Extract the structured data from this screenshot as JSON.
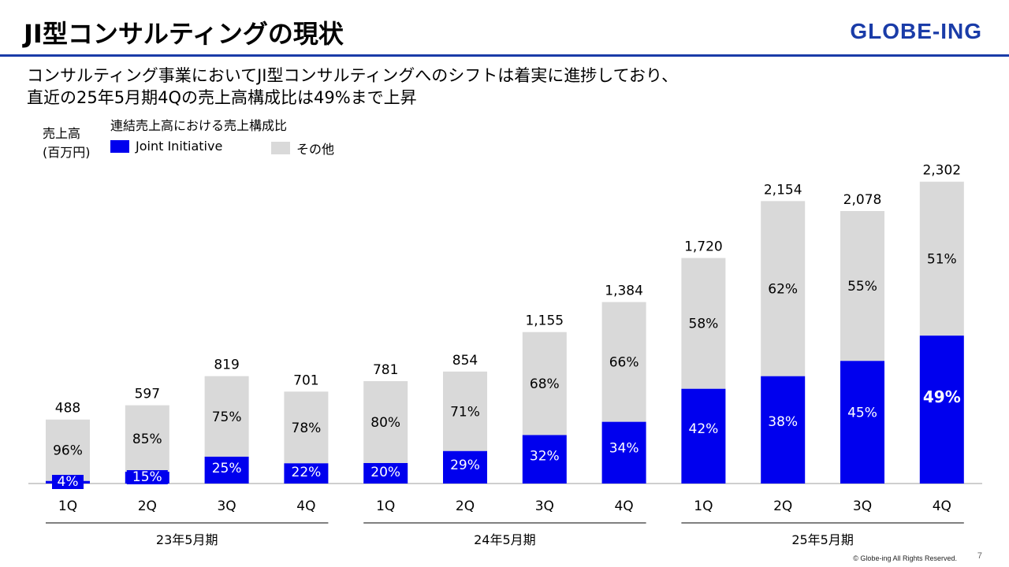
{
  "header": {
    "title": "JI型コンサルティングの現状",
    "logo": "GLOBE-ING",
    "subtitle_line1": "コンサルティング事業においてJI型コンサルティングへのシフトは着実に進捗しており、",
    "subtitle_line2": "直近の25年5月期4Qの売上高構成比は49%まで上昇"
  },
  "chart_info": {
    "y_unit_line1": "売上高",
    "y_unit_line2": "(百万円)",
    "caption": "連結売上高における売上構成比"
  },
  "legend": {
    "ji_label": "Joint Initiative",
    "other_label": "その他"
  },
  "footer": {
    "copyright": "© Globe-ing All Rights Reserved.",
    "page_number": "7"
  },
  "colors": {
    "ji": "#0000ee",
    "other": "#d9d9d9",
    "brand": "#1a3ca8"
  },
  "chart_data": {
    "type": "bar",
    "stacked": true,
    "categories": [
      "1Q",
      "2Q",
      "3Q",
      "4Q",
      "1Q",
      "2Q",
      "3Q",
      "4Q",
      "1Q",
      "2Q",
      "3Q",
      "4Q"
    ],
    "totals": [
      488,
      597,
      819,
      701,
      781,
      854,
      1155,
      1384,
      1720,
      2154,
      2078,
      2302
    ],
    "total_labels": [
      "488",
      "597",
      "819",
      "701",
      "781",
      "854",
      "1,155",
      "1,384",
      "1,720",
      "2,154",
      "2,078",
      "2,302"
    ],
    "series": [
      {
        "name": "Joint Initiative",
        "share_pct": [
          4,
          15,
          25,
          22,
          20,
          29,
          32,
          34,
          42,
          38,
          45,
          49
        ]
      },
      {
        "name": "その他",
        "share_pct": [
          96,
          85,
          75,
          78,
          80,
          71,
          68,
          66,
          58,
          62,
          55,
          51
        ]
      }
    ],
    "groups": [
      {
        "label": "23年5月期",
        "categories": [
          "1Q",
          "2Q",
          "3Q",
          "4Q"
        ]
      },
      {
        "label": "24年5月期",
        "categories": [
          "1Q",
          "2Q",
          "3Q",
          "4Q"
        ]
      },
      {
        "label": "25年5月期",
        "categories": [
          "1Q",
          "2Q",
          "3Q",
          "4Q"
        ]
      }
    ],
    "xlabel": "",
    "ylabel": "売上高 (百万円)"
  }
}
